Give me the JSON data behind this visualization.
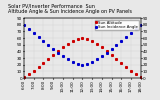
{
  "title": "Solar PV/Inverter Performance  Sun",
  "title2": "Altitude Angle & Sun Incidence Angle on PV Panels",
  "legend_labels": [
    "Sun Altitude",
    "Sun Incidence Angle"
  ],
  "legend_colors": [
    "#cc0000",
    "#0000cc"
  ],
  "series": [
    {
      "label": "Sun Altitude",
      "color": "#cc0000",
      "x": [
        6.0,
        6.5,
        7.0,
        7.5,
        8.0,
        8.5,
        9.0,
        9.5,
        10.0,
        10.5,
        11.0,
        11.5,
        12.0,
        12.5,
        13.0,
        13.5,
        14.0,
        14.5,
        15.0,
        15.5,
        16.0,
        16.5,
        17.0,
        17.5,
        18.0
      ],
      "y": [
        2,
        6,
        11,
        17,
        23,
        29,
        35,
        41,
        46,
        51,
        55,
        58,
        60,
        58,
        55,
        51,
        46,
        41,
        35,
        29,
        23,
        17,
        11,
        6,
        2
      ]
    },
    {
      "label": "Incidence Angle",
      "color": "#0000cc",
      "x": [
        6.0,
        6.5,
        7.0,
        7.5,
        8.0,
        8.5,
        9.0,
        9.5,
        10.0,
        10.5,
        11.0,
        11.5,
        12.0,
        12.5,
        13.0,
        13.5,
        14.0,
        14.5,
        15.0,
        15.5,
        16.0,
        16.5,
        17.0,
        17.5,
        18.0
      ],
      "y": [
        80,
        74,
        68,
        62,
        56,
        50,
        44,
        38,
        33,
        28,
        24,
        21,
        20,
        21,
        24,
        28,
        33,
        38,
        44,
        50,
        56,
        62,
        68,
        74,
        80
      ]
    }
  ],
  "xlim": [
    6.0,
    18.0
  ],
  "ylim": [
    0,
    90
  ],
  "ytick_values": [
    0,
    10,
    20,
    30,
    40,
    50,
    60,
    70,
    80,
    90
  ],
  "xtick_values": [
    6,
    7,
    8,
    9,
    10,
    11,
    12,
    13,
    14,
    15,
    16,
    17,
    18
  ],
  "grid_color": "#cccccc",
  "bg_color": "#e8e8e8",
  "plot_bg": "#e8e8e8",
  "title_fontsize": 3.5,
  "tick_fontsize": 3.0,
  "legend_fontsize": 2.8,
  "marker_size": 1.2,
  "right_ytick_values": [
    0,
    10,
    20,
    30,
    40,
    50,
    60,
    70,
    80,
    90
  ]
}
